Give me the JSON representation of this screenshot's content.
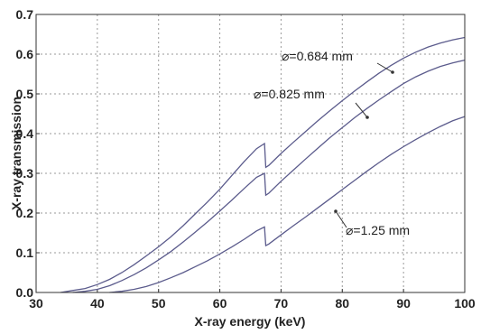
{
  "chart_data": {
    "type": "line",
    "xlabel": "X-ray energy (keV)",
    "ylabel": "X-ray transmission",
    "xlim": [
      30,
      100
    ],
    "ylim": [
      0,
      0.7
    ],
    "x_ticks": [
      "30",
      "40",
      "50",
      "60",
      "70",
      "80",
      "90",
      "100"
    ],
    "y_ticks": [
      "0.0",
      "0.1",
      "0.2",
      "0.3",
      "0.4",
      "0.5",
      "0.6",
      "0.7"
    ],
    "grid": true,
    "line_color": "#5b5b8c",
    "series": [
      {
        "name": "⌀=0.684 mm",
        "x": [
          34,
          36,
          38,
          40,
          42,
          44,
          46,
          48,
          50,
          52,
          54,
          56,
          58,
          60,
          62,
          64,
          66,
          67.3,
          67.5,
          68,
          70,
          72,
          74,
          76,
          78,
          80,
          82,
          84,
          86,
          88,
          90,
          92,
          94,
          96,
          98,
          100
        ],
        "values": [
          0.0,
          0.005,
          0.01,
          0.02,
          0.033,
          0.05,
          0.07,
          0.092,
          0.115,
          0.14,
          0.168,
          0.198,
          0.228,
          0.26,
          0.295,
          0.33,
          0.362,
          0.375,
          0.315,
          0.32,
          0.35,
          0.378,
          0.405,
          0.432,
          0.458,
          0.483,
          0.507,
          0.53,
          0.552,
          0.572,
          0.59,
          0.605,
          0.618,
          0.628,
          0.636,
          0.642
        ]
      },
      {
        "name": "⌀=0.825 mm",
        "x": [
          36,
          38,
          40,
          42,
          44,
          46,
          48,
          50,
          52,
          54,
          56,
          58,
          60,
          62,
          64,
          66,
          67.3,
          67.5,
          68,
          70,
          72,
          74,
          76,
          78,
          80,
          82,
          84,
          86,
          88,
          90,
          92,
          94,
          96,
          98,
          100
        ],
        "values": [
          0.0,
          0.003,
          0.008,
          0.017,
          0.03,
          0.045,
          0.062,
          0.082,
          0.103,
          0.127,
          0.152,
          0.178,
          0.205,
          0.233,
          0.262,
          0.29,
          0.3,
          0.245,
          0.25,
          0.28,
          0.308,
          0.336,
          0.363,
          0.39,
          0.415,
          0.44,
          0.463,
          0.485,
          0.506,
          0.526,
          0.543,
          0.557,
          0.569,
          0.578,
          0.585
        ]
      },
      {
        "name": "⌀=1.25 mm",
        "x": [
          42,
          44,
          46,
          48,
          50,
          52,
          54,
          56,
          58,
          60,
          62,
          64,
          66,
          67.3,
          67.5,
          68,
          70,
          72,
          74,
          76,
          78,
          80,
          82,
          84,
          86,
          88,
          90,
          92,
          94,
          96,
          98,
          100
        ],
        "values": [
          0.0,
          0.003,
          0.008,
          0.015,
          0.025,
          0.037,
          0.05,
          0.065,
          0.08,
          0.097,
          0.115,
          0.134,
          0.155,
          0.165,
          0.118,
          0.122,
          0.145,
          0.168,
          0.19,
          0.213,
          0.236,
          0.259,
          0.282,
          0.305,
          0.327,
          0.348,
          0.367,
          0.385,
          0.402,
          0.418,
          0.432,
          0.443
        ]
      }
    ]
  }
}
